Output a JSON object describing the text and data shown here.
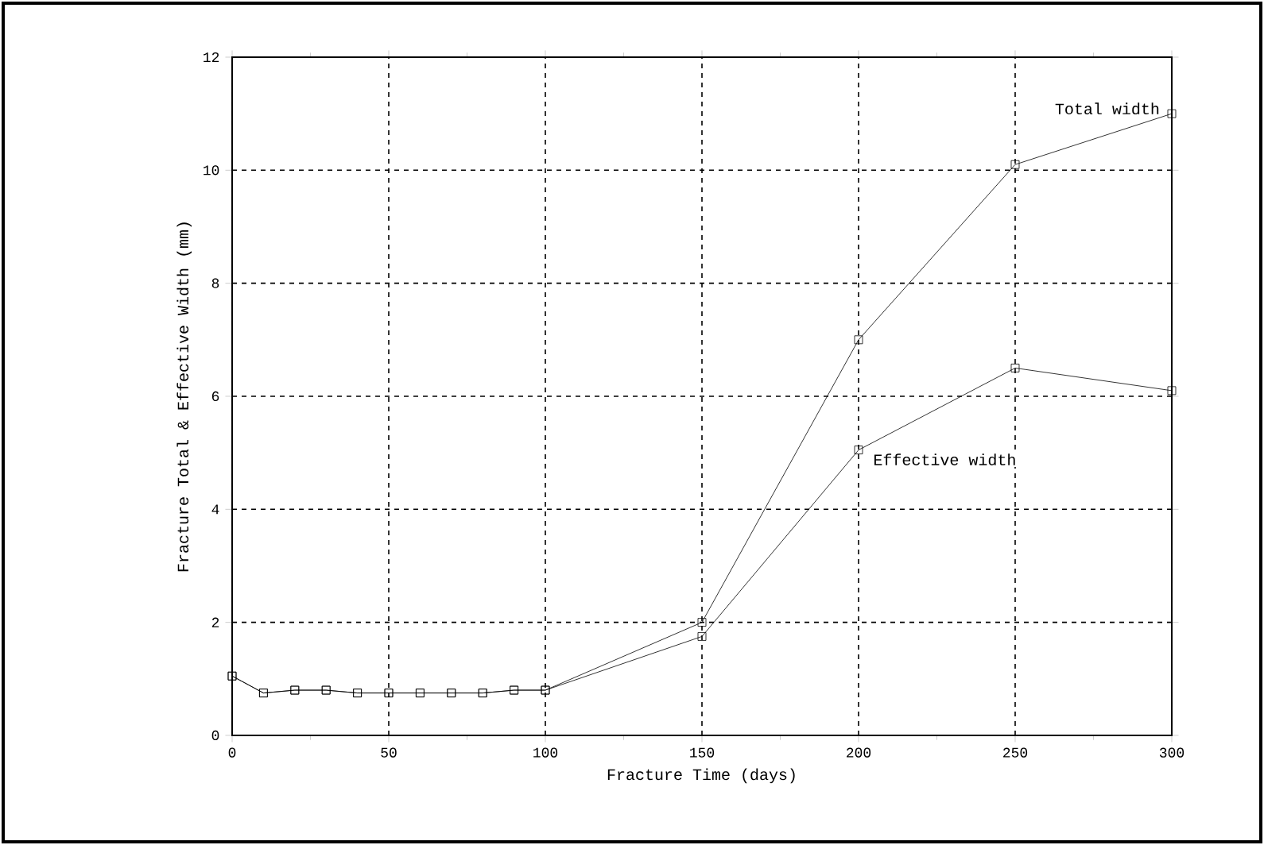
{
  "chart_data": {
    "type": "line",
    "xlabel": "Fracture Time (days)",
    "ylabel": "Fracture Total & Effective Width (mm)",
    "x": [
      0,
      10,
      20,
      30,
      40,
      50,
      60,
      70,
      80,
      90,
      100,
      150,
      200,
      250,
      300
    ],
    "series": [
      {
        "name": "Total width",
        "color": "#000000",
        "values": [
          1.05,
          0.75,
          0.8,
          0.8,
          0.75,
          0.75,
          0.75,
          0.75,
          0.75,
          0.8,
          0.8,
          2.0,
          7.0,
          10.1,
          11.0
        ]
      },
      {
        "name": "Effective width",
        "color": "#000000",
        "values": [
          1.05,
          0.75,
          0.8,
          0.8,
          0.75,
          0.75,
          0.75,
          0.75,
          0.75,
          0.8,
          0.8,
          1.75,
          5.05,
          6.5,
          6.1
        ]
      }
    ],
    "xlim": [
      0,
      300
    ],
    "xticks": [
      0,
      50,
      100,
      150,
      200,
      250,
      300
    ],
    "ylim": [
      0,
      12
    ],
    "yticks": [
      0,
      2,
      4,
      6,
      8,
      10,
      12
    ],
    "grid": true,
    "marker": "square",
    "line_style": "solid"
  }
}
